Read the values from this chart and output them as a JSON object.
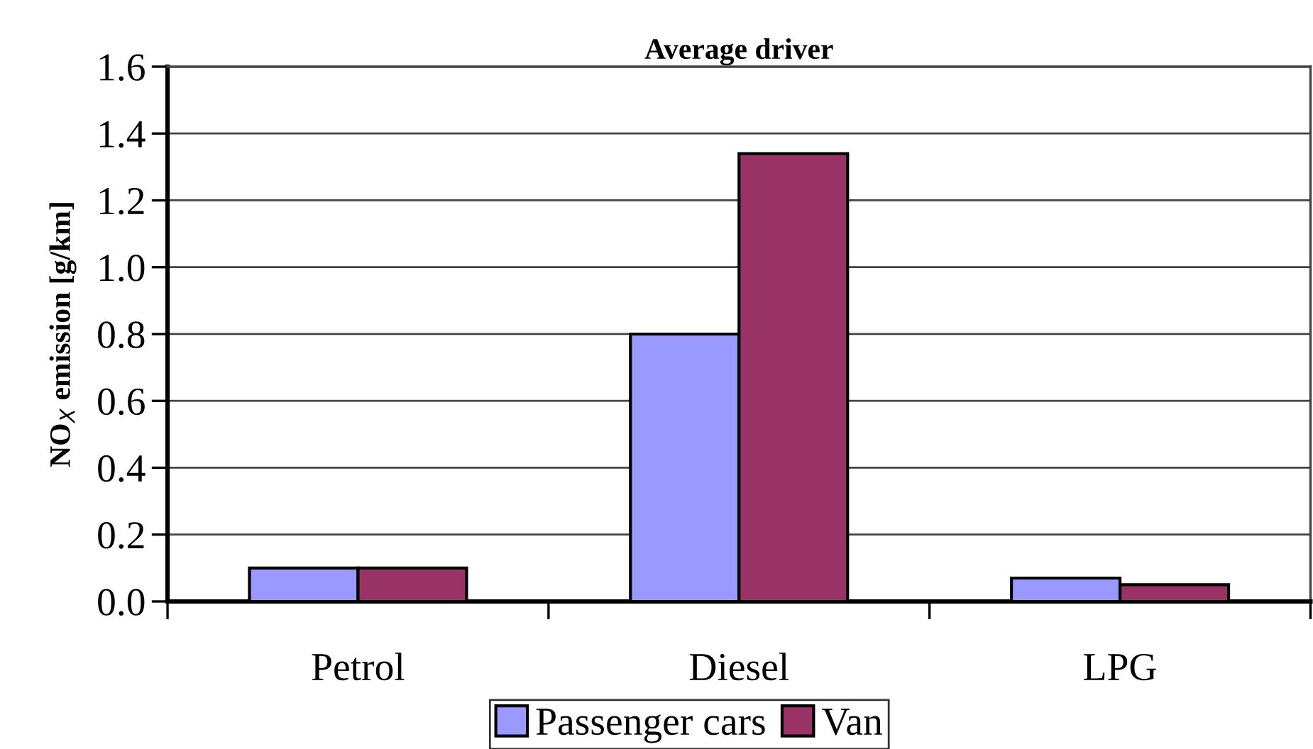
{
  "chart_data": {
    "type": "bar",
    "title": "Average driver",
    "ylabel": "NO$_{X}$ emission [g/km]",
    "categories": [
      "Petrol",
      "Diesel",
      "LPG"
    ],
    "series": [
      {
        "name": "Passenger cars",
        "color": "#9999ff",
        "values": [
          0.1,
          0.8,
          0.07
        ]
      },
      {
        "name": "Van",
        "color": "#993366",
        "values": [
          0.1,
          1.34,
          0.05
        ]
      }
    ],
    "ylim": [
      0,
      1.6
    ],
    "yticks": [
      {
        "value": 0,
        "label": "0.0"
      },
      {
        "value": 0.2,
        "label": "0.2"
      },
      {
        "value": 0.4,
        "label": "0.4"
      },
      {
        "value": 0.6,
        "label": "0.6"
      },
      {
        "value": 0.8,
        "label": "0.8"
      },
      {
        "value": 1.0,
        "label": "1.0"
      },
      {
        "value": 1.2,
        "label": "1.2"
      },
      {
        "value": 1.4,
        "label": "1.4"
      },
      {
        "value": 1.6,
        "label": "1.6"
      }
    ],
    "grid": "y",
    "legend": "bottom"
  }
}
